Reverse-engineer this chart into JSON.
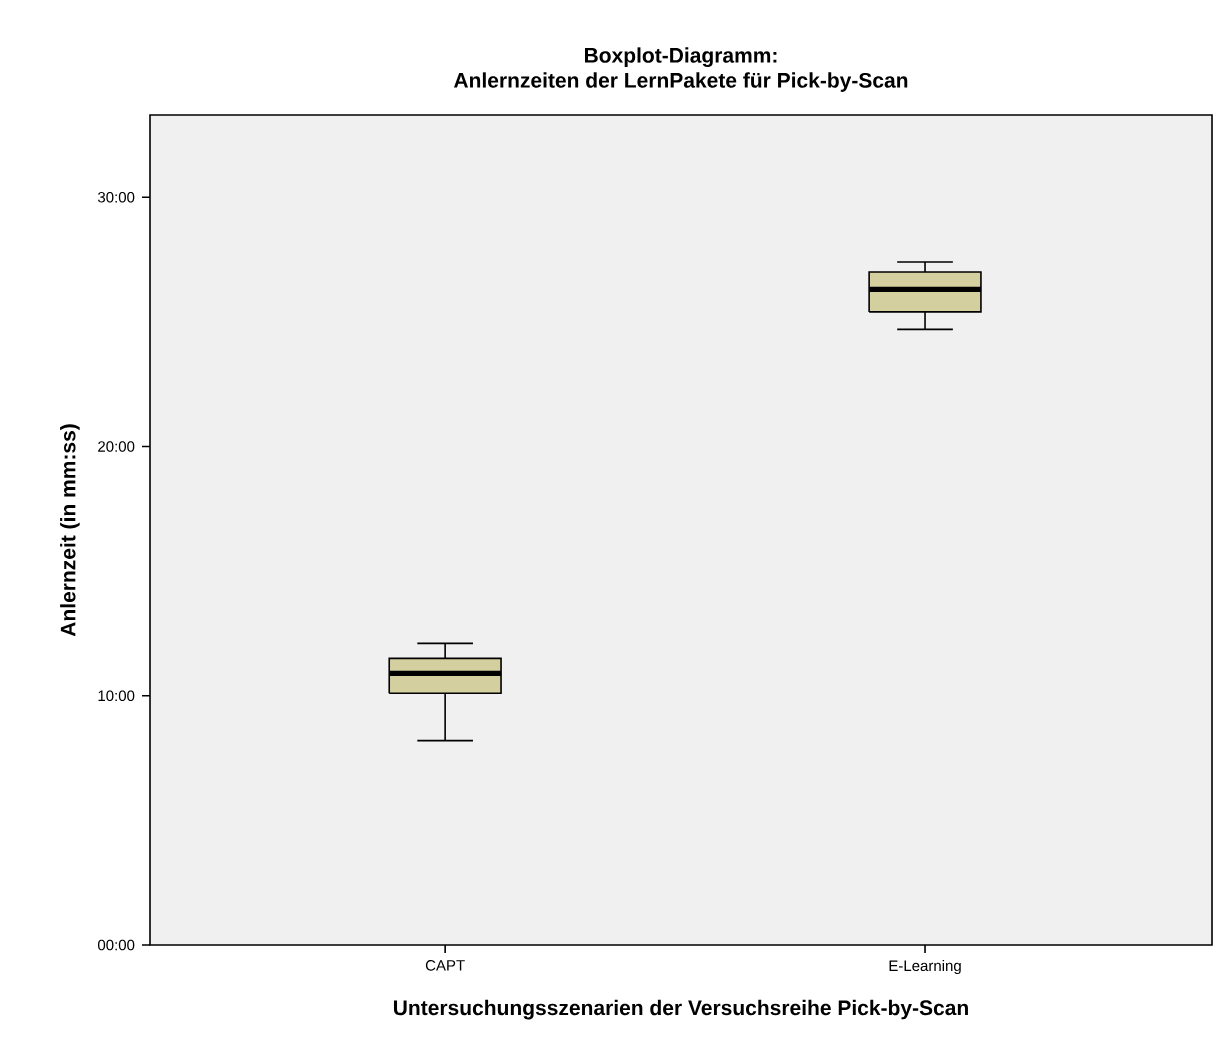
{
  "chart_data": {
    "type": "box",
    "title": "Boxplot-Diagramm:",
    "subtitle": "Anlernzeiten der LernPakete für Pick-by-Scan",
    "xlabel": "Untersuchungsszenarien der Versuchsreihe Pick-by-Scan",
    "ylabel": "Anlernzeit (in mm:ss)",
    "categories": [
      "CAPT",
      "E-Learning"
    ],
    "boxes": [
      {
        "low": 8.2,
        "q1": 10.1,
        "median": 10.9,
        "q3": 11.5,
        "high": 12.1
      },
      {
        "low": 24.7,
        "q1": 25.4,
        "median": 26.3,
        "q3": 27.0,
        "high": 27.4
      }
    ],
    "color": "#d4cf9f",
    "ylim": [
      0,
      33.3
    ],
    "yticks": [
      {
        "value": 0,
        "label": "00:00"
      },
      {
        "value": 10,
        "label": "10:00"
      },
      {
        "value": 20,
        "label": "20:00"
      },
      {
        "value": 30,
        "label": "30:00"
      }
    ],
    "grid": false
  }
}
